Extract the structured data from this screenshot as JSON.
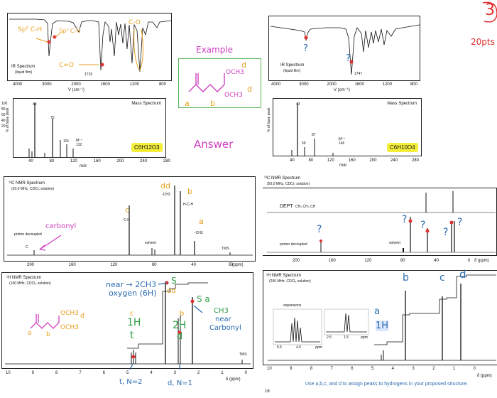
{
  "corner": {
    "circle_number": "3",
    "points": "20pts"
  },
  "example": {
    "header": "Example",
    "answer": "Answer",
    "structure_labels": {
      "och3_top": "OCH3",
      "och3_bottom": "OCH3",
      "a": "a",
      "b": "b",
      "d_top": "d",
      "d_bottom": "d"
    }
  },
  "left": {
    "ir": {
      "title": "IR Spectrum",
      "subtitle": "(liquid film)",
      "peak_label": "1715",
      "ticks": [
        "4000",
        "3000",
        "2000",
        "1600",
        "1200",
        "800"
      ],
      "xlabel": "V (cm⁻¹)",
      "notes": {
        "sp2": "Sp² C-H",
        "sp3": "Sp³ C-H",
        "co_double": "C=O",
        "co_single": "C-O"
      }
    },
    "ms": {
      "title": "Mass Spectrum",
      "yaxis": "% of base peak",
      "yticks": [
        "100",
        "80",
        "60",
        "40",
        "20"
      ],
      "peaks": [
        "43",
        "75",
        "101",
        "M⁺⁺ 132"
      ],
      "ticks": [
        "40",
        "80",
        "120",
        "160",
        "200",
        "240",
        "280"
      ],
      "xlabel": "m/e",
      "formula": "C6H12O3"
    },
    "c13": {
      "title": "¹³C NMR Spectrum",
      "subtitle": "(20.0 MHz, CDCl₃ solution)",
      "proton_decoupled": "proton decoupled",
      "c_label": "C",
      "carbonyl": "carbonyl",
      "ch_label": "C-H",
      "solvent": "solvent",
      "tms": "TMS",
      "ticks": [
        "200",
        "160",
        "120",
        "80",
        "40",
        "0"
      ],
      "xlabel": "δ (ppm)",
      "notes": {
        "dd": "dd",
        "ch3_d": "-CH3",
        "b": "b",
        "hch": "H-C-H",
        "a": "a",
        "ch3_a": "-CH3",
        "c": "c"
      }
    },
    "h1": {
      "title": "¹H NMR Spectrum",
      "subtitle": "(100 MHz, CDCl₃ solution)",
      "tms": "TMS",
      "ticks": [
        "10",
        "9",
        "8",
        "7",
        "6",
        "5",
        "4",
        "3",
        "2",
        "1",
        "0"
      ],
      "xlabel": "δ (ppm)",
      "notes": {
        "near": "near → 2CH3",
        "oxygen": "oxygen (6H)",
        "s_top": "S",
        "dd": "dd",
        "c": "c",
        "one_h": "1H",
        "t": "t",
        "two_h": "2H",
        "b": "b",
        "d": "d",
        "s_a": "S a",
        "ch3": "CH3",
        "near2": "near",
        "carbonyl": "Carbonyl",
        "t_n2": "t, N=2",
        "d_n1": "d, N=1"
      },
      "structure": {
        "och3_top": "OCH3",
        "och3_bottom": "OCH3",
        "a": "a",
        "b": "b",
        "d": "d"
      }
    }
  },
  "right": {
    "ir": {
      "title": "IR Spectrum",
      "subtitle": "(liquid film)",
      "peak_label": "1747",
      "ticks": [
        "4000",
        "3000",
        "2000",
        "1600",
        "1200",
        "800"
      ],
      "xlabel": "V (cm⁻¹)",
      "q": "?"
    },
    "ms": {
      "title": "Mass Spectrum",
      "yaxis": "% of base peak",
      "peaks": [
        "43",
        "87",
        "59",
        "M⁺⁺ 146"
      ],
      "ticks": [
        "40",
        "80",
        "120",
        "160",
        "200",
        "240",
        "280"
      ],
      "xlabel": "m/e",
      "formula": "C6H10O4"
    },
    "c13": {
      "title": "¹³C NMR Spectrum",
      "subtitle": "(50.0 MHz, CDCl₃ solution)",
      "dept": "DEPT",
      "dept_labels": "CH₂ CH₃  CH",
      "proton_decoupled": "proton decoupled",
      "solvent": "solvent",
      "ticks": [
        "200",
        "160",
        "120",
        "80",
        "40",
        "0"
      ],
      "xlabel": "δ (ppm)",
      "q": "?"
    },
    "h1": {
      "title": "¹H NMR Spectrum",
      "subtitle": "(200 MHz, CDCl₃ solution)",
      "expansions": "expansions",
      "exp_ticks_a": [
        "5.5",
        "4.5",
        "ppm"
      ],
      "exp_ticks_b": [
        "2.5",
        "1.5",
        "ppm"
      ],
      "ticks": [
        "10",
        "9",
        "8",
        "7",
        "6",
        "5",
        "4",
        "3",
        "2",
        "1",
        "0"
      ],
      "xlabel": "δ (ppm)",
      "notes": {
        "a": "a",
        "one_h": "1H",
        "b": "b",
        "c": "c",
        "d": "d"
      },
      "instruction": "Use a,b,c, and d to assign peaks to hydrogens in your proposed structure."
    }
  },
  "page_number": "16"
}
